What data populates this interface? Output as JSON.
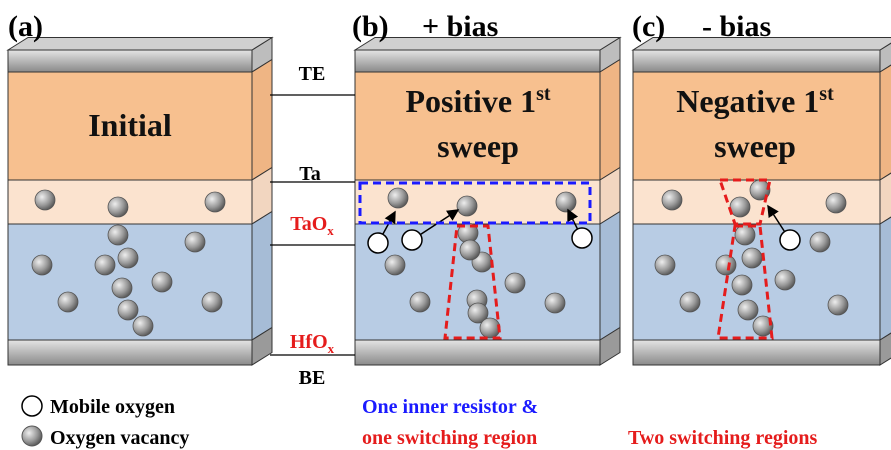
{
  "panels": [
    {
      "label": "(a)",
      "title": "Initial"
    },
    {
      "label": "(b)",
      "bias": "+ bias",
      "title": {
        "text": "Positive 1",
        "sup": "st",
        "line2": "sweep"
      },
      "caption": [
        "One inner resistor &",
        "one switching region"
      ]
    },
    {
      "label": "(c)",
      "bias": "- bias",
      "title": {
        "text": "Negative 1",
        "sup": "st",
        "line2": "sweep"
      },
      "caption": [
        "Two switching regions"
      ]
    }
  ],
  "layers": {
    "te": "TE",
    "ta": "Ta",
    "taox": {
      "text": "TaO",
      "sub": "x"
    },
    "hfox": {
      "text": "HfO",
      "sub": "x"
    },
    "be": "BE"
  },
  "legend": {
    "mobile": "Mobile oxygen",
    "vacancy": "Oxygen vacancy"
  }
}
